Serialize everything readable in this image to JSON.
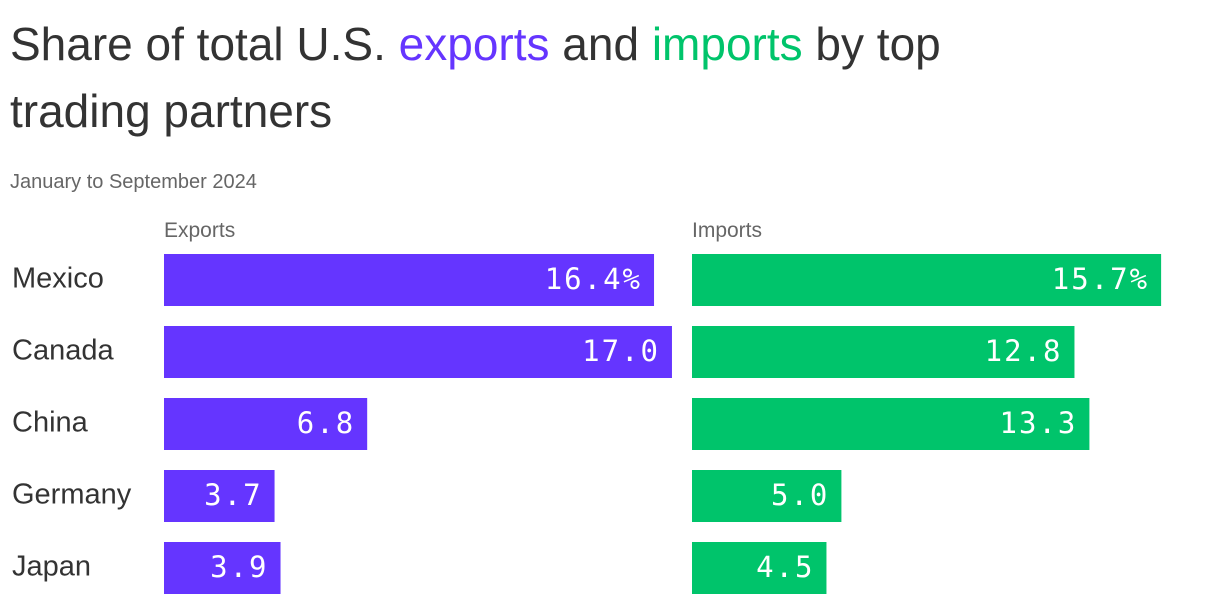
{
  "chart_data": {
    "type": "bar",
    "title_parts": [
      "Share of total U.S.",
      "exports",
      "and",
      "imports",
      "by top",
      "trading partners"
    ],
    "subtitle": "January to September 2024",
    "categories": [
      "Mexico",
      "Canada",
      "China",
      "Germany",
      "Japan"
    ],
    "series": [
      {
        "name": "Exports",
        "color": "#6535ff",
        "values": [
          16.4,
          17.0,
          6.8,
          3.7,
          3.9
        ],
        "value_labels": [
          "16.4%",
          "17.0",
          "6.8",
          "3.7",
          "3.9"
        ]
      },
      {
        "name": "Imports",
        "color": "#00c46b",
        "values": [
          15.7,
          12.8,
          13.3,
          5.0,
          4.5
        ],
        "value_labels": [
          "15.7%",
          "12.8",
          "13.3",
          "5.0",
          "4.5"
        ]
      }
    ]
  }
}
